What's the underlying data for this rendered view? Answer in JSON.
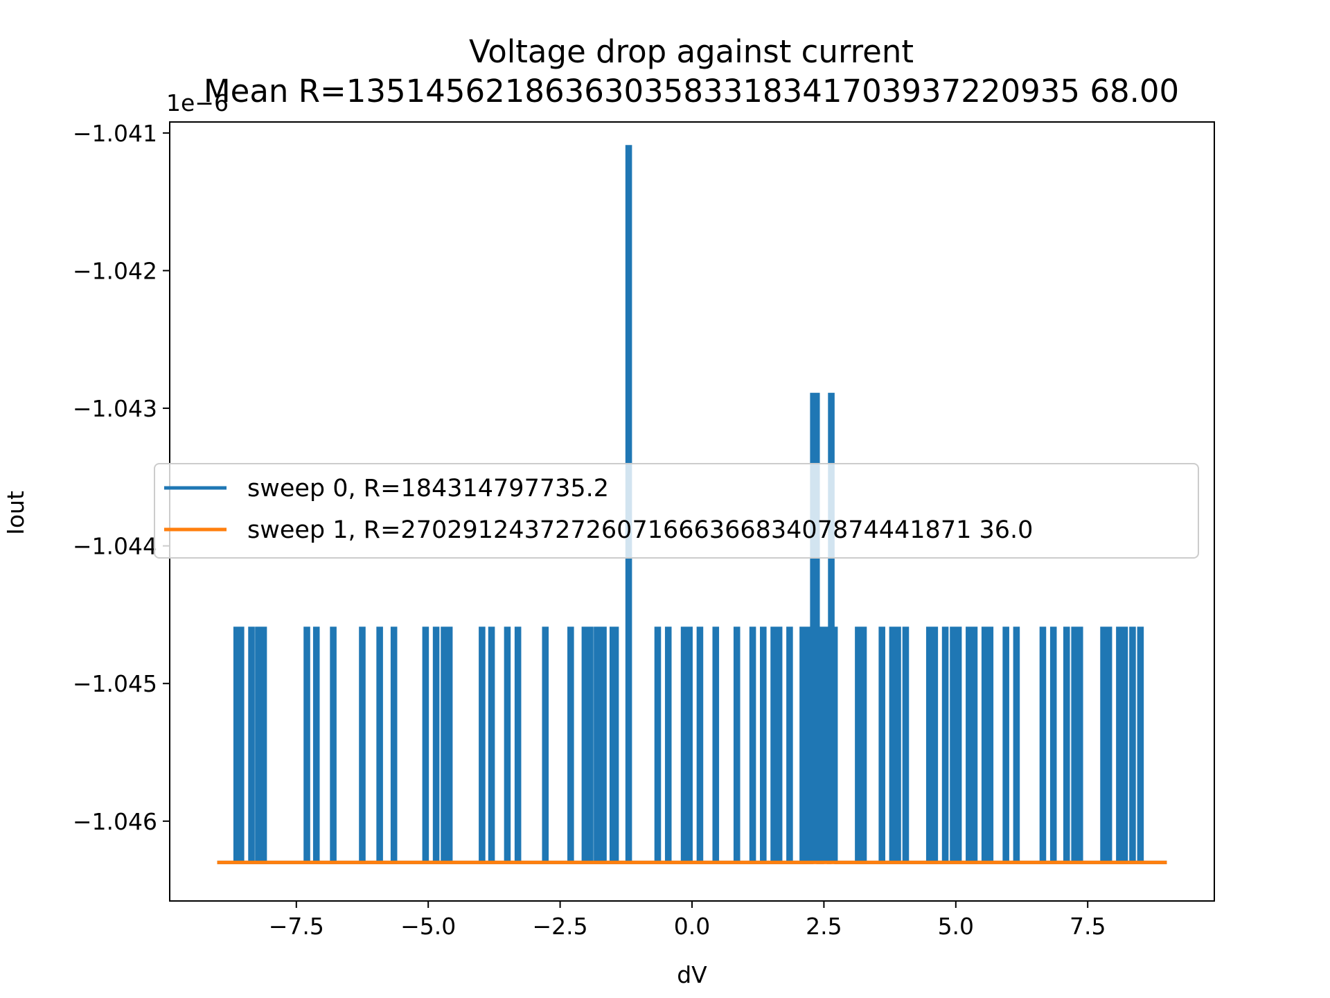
{
  "chart_data": {
    "type": "line",
    "title": "Voltage drop against current",
    "subtitle": "Mean R=1351456218636303583318341703937220935 68.00",
    "xlabel": "dV",
    "ylabel": "Iout",
    "y_offset_label": "1e−6",
    "xlim": [
      -9.9,
      9.9
    ],
    "ylim": [
      -1.04658,
      -1.04092
    ],
    "x_ticks": [
      -7.5,
      -5.0,
      -2.5,
      0.0,
      2.5,
      5.0,
      7.5
    ],
    "x_tick_labels": [
      "−7.5",
      "−5.0",
      "−2.5",
      "0.0",
      "2.5",
      "5.0",
      "7.5"
    ],
    "y_ticks": [
      -1.046,
      -1.045,
      -1.044,
      -1.043,
      -1.042,
      -1.041
    ],
    "y_tick_labels": [
      "−1.046",
      "−1.045",
      "−1.044",
      "−1.043",
      "−1.042",
      "−1.041"
    ],
    "y_unit_scale": "1e-6",
    "grid": false,
    "legend_position": "center-left",
    "baseline_y": -1.0463,
    "series": [
      {
        "name": "sweep 0, R=184314797735.2",
        "color": "#1f77b4",
        "x_range": [
          -9.0,
          9.0
        ],
        "baseline": -1.0463,
        "spikes": [
          {
            "x": -8.63,
            "y": -1.0446
          },
          {
            "x": -8.55,
            "y": -1.0446
          },
          {
            "x": -8.35,
            "y": -1.0446
          },
          {
            "x": -8.22,
            "y": -1.0446
          },
          {
            "x": -8.12,
            "y": -1.0446
          },
          {
            "x": -7.3,
            "y": -1.0446
          },
          {
            "x": -7.12,
            "y": -1.0446
          },
          {
            "x": -6.8,
            "y": -1.0446
          },
          {
            "x": -6.25,
            "y": -1.0446
          },
          {
            "x": -5.92,
            "y": -1.0446
          },
          {
            "x": -5.65,
            "y": -1.0446
          },
          {
            "x": -5.05,
            "y": -1.0446
          },
          {
            "x": -4.85,
            "y": -1.0446
          },
          {
            "x": -4.7,
            "y": -1.0446
          },
          {
            "x": -4.6,
            "y": -1.0446
          },
          {
            "x": -3.98,
            "y": -1.0446
          },
          {
            "x": -3.8,
            "y": -1.0446
          },
          {
            "x": -3.5,
            "y": -1.0446
          },
          {
            "x": -3.3,
            "y": -1.0446
          },
          {
            "x": -2.78,
            "y": -1.0446
          },
          {
            "x": -2.3,
            "y": -1.0446
          },
          {
            "x": -2.03,
            "y": -1.0446
          },
          {
            "x": -1.93,
            "y": -1.0446
          },
          {
            "x": -1.8,
            "y": -1.0446
          },
          {
            "x": -1.68,
            "y": -1.0446
          },
          {
            "x": -1.5,
            "y": -1.0446
          },
          {
            "x": -1.45,
            "y": -1.0446
          },
          {
            "x": -1.2,
            "y": -1.0411
          },
          {
            "x": -0.65,
            "y": -1.0446
          },
          {
            "x": -0.45,
            "y": -1.0446
          },
          {
            "x": -0.15,
            "y": -1.0446
          },
          {
            "x": -0.05,
            "y": -1.0446
          },
          {
            "x": 0.15,
            "y": -1.0446
          },
          {
            "x": 0.45,
            "y": -1.0446
          },
          {
            "x": 0.85,
            "y": -1.0446
          },
          {
            "x": 1.15,
            "y": -1.0446
          },
          {
            "x": 1.35,
            "y": -1.0446
          },
          {
            "x": 1.55,
            "y": -1.0446
          },
          {
            "x": 1.65,
            "y": -1.0446
          },
          {
            "x": 1.85,
            "y": -1.0446
          },
          {
            "x": 2.1,
            "y": -1.0446
          },
          {
            "x": 2.2,
            "y": -1.0446
          },
          {
            "x": 2.3,
            "y": -1.0429
          },
          {
            "x": 2.36,
            "y": -1.0429
          },
          {
            "x": 2.43,
            "y": -1.0446
          },
          {
            "x": 2.5,
            "y": -1.0446
          },
          {
            "x": 2.56,
            "y": -1.0446
          },
          {
            "x": 2.64,
            "y": -1.0429
          },
          {
            "x": 2.7,
            "y": -1.0446
          },
          {
            "x": 3.15,
            "y": -1.0446
          },
          {
            "x": 3.25,
            "y": -1.0446
          },
          {
            "x": 3.6,
            "y": -1.0446
          },
          {
            "x": 3.8,
            "y": -1.0446
          },
          {
            "x": 3.9,
            "y": -1.0446
          },
          {
            "x": 4.05,
            "y": -1.0446
          },
          {
            "x": 4.5,
            "y": -1.0446
          },
          {
            "x": 4.6,
            "y": -1.0446
          },
          {
            "x": 4.8,
            "y": -1.0446
          },
          {
            "x": 4.95,
            "y": -1.0446
          },
          {
            "x": 5.05,
            "y": -1.0446
          },
          {
            "x": 5.25,
            "y": -1.0446
          },
          {
            "x": 5.35,
            "y": -1.0446
          },
          {
            "x": 5.55,
            "y": -1.0446
          },
          {
            "x": 5.65,
            "y": -1.0446
          },
          {
            "x": 5.95,
            "y": -1.0446
          },
          {
            "x": 6.15,
            "y": -1.0446
          },
          {
            "x": 6.65,
            "y": -1.0446
          },
          {
            "x": 6.85,
            "y": -1.0446
          },
          {
            "x": 7.1,
            "y": -1.0446
          },
          {
            "x": 7.25,
            "y": -1.0446
          },
          {
            "x": 7.35,
            "y": -1.0446
          },
          {
            "x": 7.8,
            "y": -1.0446
          },
          {
            "x": 7.9,
            "y": -1.0446
          },
          {
            "x": 8.1,
            "y": -1.0446
          },
          {
            "x": 8.2,
            "y": -1.0446
          },
          {
            "x": 8.35,
            "y": -1.0446
          },
          {
            "x": 8.5,
            "y": -1.0446
          }
        ]
      },
      {
        "name": "sweep 1, R=2702912437272607166636683407874441871 36.0",
        "color": "#ff7f0e",
        "x": [
          -9.0,
          9.0
        ],
        "y": [
          -1.0463,
          -1.0463
        ]
      }
    ]
  }
}
